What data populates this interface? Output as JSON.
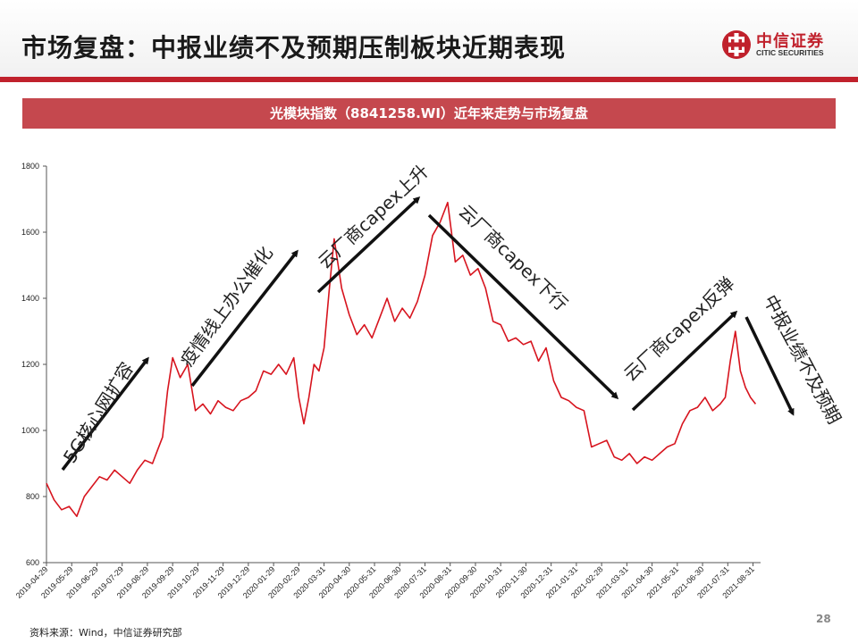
{
  "header": {
    "title": "市场复盘：中报业绩不及预期压制板块近期表现",
    "logo_cn": "中信证券",
    "logo_en": "CITIC SECURITIES"
  },
  "banner": {
    "text": "光模块指数（8841258.WI）近年来走势与市场复盘"
  },
  "footer": {
    "source": "资料来源：Wind，中信证券研究部",
    "page": "28"
  },
  "colors": {
    "accent": "#c0212c",
    "banner": "#c5484e",
    "line": "#d7141e"
  },
  "chart_data": {
    "type": "line",
    "ylim": [
      600,
      1800
    ],
    "yticks": [
      "600",
      "800",
      "1000",
      "1200",
      "1400",
      "1600",
      "1800"
    ],
    "xticks": [
      "2019-04-29",
      "2019-05-29",
      "2019-06-29",
      "2019-07-29",
      "2019-08-29",
      "2019-09-29",
      "2019-10-29",
      "2019-11-29",
      "2019-12-29",
      "2020-01-29",
      "2020-02-29",
      "2020-03-31",
      "2020-04-30",
      "2020-05-31",
      "2020-06-30",
      "2020-07-31",
      "2020-08-31",
      "2020-09-30",
      "2020-10-31",
      "2020-11-30",
      "2020-12-31",
      "2021-01-31",
      "2021-02-28",
      "2021-03-31",
      "2021-04-30",
      "2021-05-31",
      "2021-06-30",
      "2021-07-31",
      "2021-08-31"
    ],
    "series": [
      {
        "x": [
          0,
          0.3,
          0.6,
          0.9,
          1.2,
          1.5,
          1.8,
          2.1,
          2.4,
          2.7,
          3,
          3.3,
          3.6,
          3.9,
          4.2,
          4.4,
          4.6,
          4.8,
          5,
          5.3,
          5.6,
          5.9,
          6.2,
          6.5,
          6.8,
          7.1,
          7.4,
          7.7,
          8,
          8.3,
          8.6,
          8.9,
          9.2,
          9.5,
          9.8,
          10,
          10.2,
          10.4,
          10.6,
          10.8,
          11,
          11.2,
          11.4,
          11.7,
          12,
          12.3,
          12.6,
          12.9,
          13.2,
          13.5,
          13.8,
          14.1,
          14.4,
          14.7,
          15,
          15.3,
          15.6,
          15.9,
          16.2,
          16.5,
          16.8,
          17.1,
          17.4,
          17.7,
          18,
          18.3,
          18.6,
          18.9,
          19.2,
          19.5,
          19.8,
          20.1,
          20.4,
          20.7,
          21,
          21.3,
          21.6,
          21.9,
          22.2,
          22.5,
          22.8,
          23.1,
          23.4,
          23.7,
          24,
          24.3,
          24.6,
          24.9,
          25.2,
          25.5,
          25.8,
          26.1,
          26.4,
          26.7,
          26.9,
          27.1,
          27.3,
          27.5,
          27.7,
          27.9,
          28.1
        ],
        "values": [
          840,
          790,
          760,
          770,
          740,
          800,
          830,
          860,
          850,
          880,
          860,
          840,
          880,
          910,
          900,
          940,
          980,
          1120,
          1220,
          1160,
          1200,
          1060,
          1080,
          1050,
          1090,
          1070,
          1060,
          1090,
          1100,
          1120,
          1180,
          1170,
          1200,
          1170,
          1220,
          1100,
          1020,
          1100,
          1200,
          1180,
          1250,
          1420,
          1580,
          1430,
          1350,
          1290,
          1320,
          1280,
          1340,
          1400,
          1330,
          1370,
          1340,
          1390,
          1470,
          1590,
          1630,
          1690,
          1510,
          1530,
          1470,
          1490,
          1430,
          1330,
          1320,
          1270,
          1280,
          1260,
          1270,
          1210,
          1250,
          1150,
          1100,
          1090,
          1070,
          1060,
          950,
          960,
          970,
          920,
          910,
          930,
          900,
          920,
          910,
          930,
          950,
          960,
          1020,
          1060,
          1070,
          1100,
          1060,
          1080,
          1100,
          1210,
          1300,
          1180,
          1130,
          1100,
          1080
        ]
      }
    ],
    "annotations": [
      "5G核心网扩容",
      "疫情线上办公催化",
      "云厂商capex上升",
      "云厂商capex下行",
      "云厂商capex反弹",
      "中报业绩不及预期"
    ]
  }
}
